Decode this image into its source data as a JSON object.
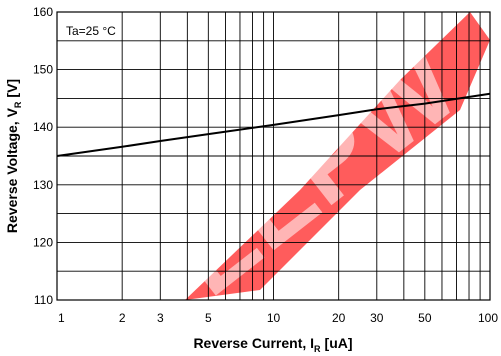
{
  "chart_data": {
    "type": "line",
    "xlabel": "Reverse Current, I",
    "xlabel_subscript": "R",
    "xlabel_unit": "[uA]",
    "ylabel": "Reverse Voltage, V",
    "ylabel_subscript": "R",
    "ylabel_unit": "[V]",
    "annotation": "Ta=25 °C",
    "x_scale": "log",
    "xlim": [
      1,
      100
    ],
    "ylim": [
      110,
      160
    ],
    "x_ticks": [
      1,
      2,
      3,
      5,
      10,
      20,
      30,
      50,
      100
    ],
    "y_ticks": [
      110,
      120,
      130,
      140,
      150,
      160
    ],
    "grid": true,
    "series": [
      {
        "x": [
          1,
          2,
          3,
          5,
          10,
          20,
          30,
          50,
          100
        ],
        "y": [
          135,
          136.6,
          137.6,
          138.8,
          140.4,
          142.1,
          143.1,
          144.1,
          145.8
        ]
      }
    ],
    "watermark": {
      "text": "EEPW",
      "color": "#ff0000"
    }
  }
}
